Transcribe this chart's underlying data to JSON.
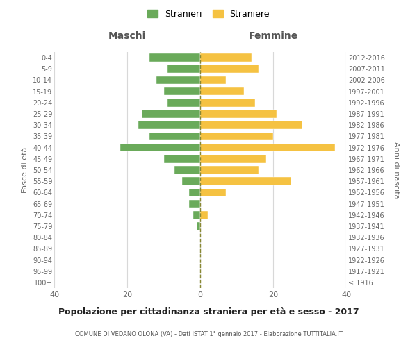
{
  "age_groups": [
    "100+",
    "95-99",
    "90-94",
    "85-89",
    "80-84",
    "75-79",
    "70-74",
    "65-69",
    "60-64",
    "55-59",
    "50-54",
    "45-49",
    "40-44",
    "35-39",
    "30-34",
    "25-29",
    "20-24",
    "15-19",
    "10-14",
    "5-9",
    "0-4"
  ],
  "birth_years": [
    "≤ 1916",
    "1917-1921",
    "1922-1926",
    "1927-1931",
    "1932-1936",
    "1937-1941",
    "1942-1946",
    "1947-1951",
    "1952-1956",
    "1957-1961",
    "1962-1966",
    "1967-1971",
    "1972-1976",
    "1977-1981",
    "1982-1986",
    "1987-1991",
    "1992-1996",
    "1997-2001",
    "2002-2006",
    "2007-2011",
    "2012-2016"
  ],
  "maschi": [
    0,
    0,
    0,
    0,
    0,
    1,
    2,
    3,
    3,
    5,
    7,
    10,
    22,
    14,
    17,
    16,
    9,
    10,
    12,
    9,
    14
  ],
  "femmine": [
    0,
    0,
    0,
    0,
    0,
    0,
    2,
    0,
    7,
    25,
    16,
    18,
    37,
    20,
    28,
    21,
    15,
    12,
    7,
    16,
    14
  ],
  "maschi_color": "#6aaa5a",
  "femmine_color": "#f5c242",
  "dashed_color": "#888833",
  "title": "Popolazione per cittadinanza straniera per età e sesso - 2017",
  "subtitle": "COMUNE DI VEDANO OLONA (VA) - Dati ISTAT 1° gennaio 2017 - Elaborazione TUTTITALIA.IT",
  "xlabel_left": "Maschi",
  "xlabel_right": "Femmine",
  "ylabel_left": "Fasce di età",
  "ylabel_right": "Anni di nascita",
  "xlim": 40,
  "legend_stranieri": "Stranieri",
  "legend_straniere": "Straniere",
  "background_color": "#ffffff",
  "grid_color": "#d8d8d8"
}
